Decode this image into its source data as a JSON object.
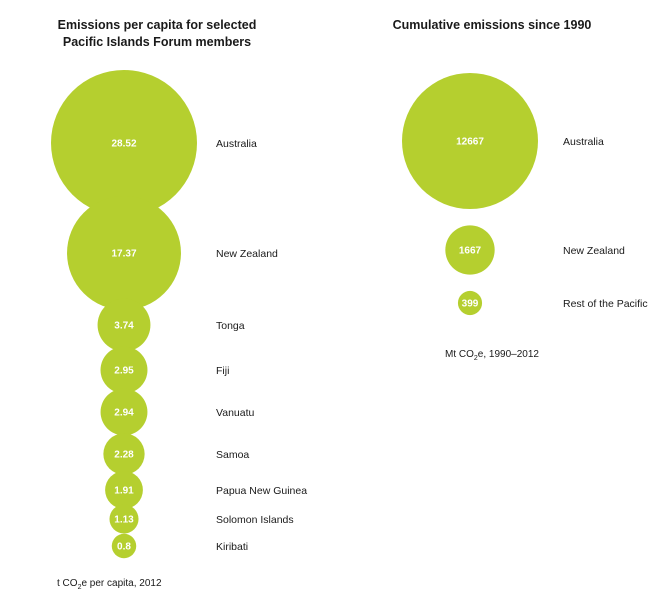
{
  "chart_data": [
    {
      "type": "bubble",
      "title_lines": [
        "Emissions per capita for selected",
        "Pacific Islands Forum members"
      ],
      "unit": {
        "prefix": "t CO",
        "sub": "2",
        "suffix": "e per capita, 2012"
      },
      "categories": [
        "Australia",
        "New Zealand",
        "Tonga",
        "Fiji",
        "Vanuatu",
        "Samoa",
        "Papua New Guinea",
        "Solomon Islands",
        "Kiribati"
      ],
      "values": [
        28.52,
        17.37,
        3.74,
        2.95,
        2.94,
        2.28,
        1.91,
        1.13,
        0.8
      ],
      "value_labels": [
        "28.52",
        "17.37",
        "3.74",
        "2.95",
        "2.94",
        "2.28",
        "1.91",
        "1.13",
        "0.8"
      ],
      "color": "#b5cf2f"
    },
    {
      "type": "bubble",
      "title_lines": [
        "Cumulative emissions since 1990"
      ],
      "unit": {
        "prefix": "Mt CO",
        "sub": "2",
        "suffix": "e, 1990–2012"
      },
      "categories": [
        "Australia",
        "New Zealand",
        "Rest of the Pacific"
      ],
      "values": [
        12667,
        1667,
        399
      ],
      "value_labels": [
        "12667",
        "1667",
        "399"
      ],
      "color": "#b5cf2f"
    }
  ]
}
